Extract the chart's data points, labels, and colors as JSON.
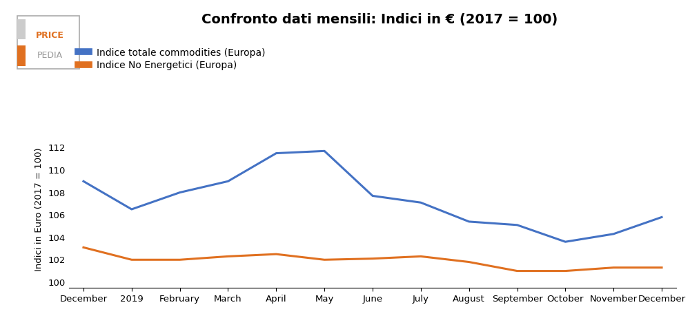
{
  "title": "Confronto dati mensili: Indici in € (2017 = 100)",
  "ylabel": "Indici in Euro (2017 = 100)",
  "x_labels": [
    "December",
    "2019",
    "February",
    "March",
    "April",
    "May",
    "June",
    "July",
    "August",
    "September",
    "October",
    "November",
    "December"
  ],
  "blue_series": [
    109.0,
    106.5,
    108.0,
    109.0,
    111.5,
    111.7,
    107.7,
    107.1,
    105.4,
    105.1,
    103.6,
    104.3,
    105.8
  ],
  "orange_series": [
    103.1,
    102.0,
    102.0,
    102.3,
    102.5,
    102.0,
    102.1,
    102.3,
    101.8,
    101.0,
    101.0,
    101.3,
    101.3
  ],
  "blue_color": "#4472C4",
  "orange_color": "#E07020",
  "blue_label": "Indice totale commodities (Europa)",
  "orange_label": "Indice No Energetici (Europa)",
  "ylim": [
    99.5,
    113.5
  ],
  "yticks": [
    100,
    102,
    104,
    106,
    108,
    110,
    112
  ],
  "bg_color": "#ffffff",
  "line_width": 2.2,
  "logo_text_price": "PRICE",
  "logo_text_pedia": "PEDIA",
  "logo_orange": "#E07020",
  "logo_gray": "#999999"
}
